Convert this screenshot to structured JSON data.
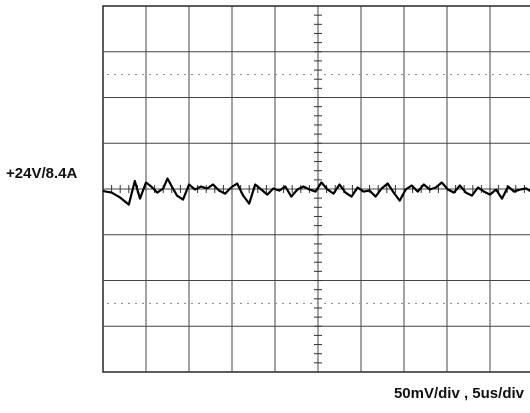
{
  "chart_data": {
    "type": "line",
    "title": "",
    "channel_label": "+24V/8.4A",
    "scale_label": "50mV/div , 5us/div",
    "xlabel": "",
    "ylabel": "",
    "grid": true,
    "divisions": {
      "x": 10,
      "y": 8
    },
    "xlim": [
      0,
      50
    ],
    "ylim": [
      -200,
      200
    ],
    "x_unit": "us",
    "y_unit": "mV",
    "series": [
      {
        "name": "",
        "x": [
          0,
          1,
          2,
          3,
          3.7,
          4.3,
          5,
          5.6,
          6.3,
          7,
          7.5,
          8,
          8.6,
          9.3,
          10,
          10.7,
          11.4,
          12.1,
          12.8,
          13.5,
          14.2,
          14.9,
          15.6,
          16.3,
          17,
          17.7,
          18.4,
          19.1,
          19.8,
          20.5,
          21.2,
          21.9,
          22.6,
          23.3,
          24,
          24.7,
          25.4,
          26.1,
          26.8,
          27.5,
          28.2,
          28.9,
          29.6,
          30.3,
          31,
          31.7,
          32.4,
          33.1,
          33.8,
          34.5,
          35.2,
          35.9,
          36.6,
          37.3,
          38,
          38.7,
          39.4,
          40.1,
          40.8,
          41.5,
          42.2,
          42.9,
          43.6,
          44.3,
          45,
          45.7,
          46.4,
          47.1,
          47.8,
          48.5,
          49.2,
          50
        ],
        "y": [
          5,
          2,
          -8,
          -22,
          25,
          -10,
          22,
          14,
          2,
          10,
          30,
          14,
          -4,
          -12,
          18,
          8,
          14,
          10,
          18,
          6,
          0,
          12,
          20,
          -4,
          -20,
          18,
          8,
          -2,
          10,
          6,
          14,
          -6,
          8,
          14,
          8,
          4,
          22,
          8,
          0,
          18,
          2,
          -6,
          12,
          4,
          6,
          -6,
          10,
          20,
          2,
          -14,
          8,
          16,
          4,
          18,
          8,
          12,
          22,
          8,
          2,
          16,
          2,
          -4,
          12,
          4,
          -2,
          8,
          -10,
          14,
          4,
          8,
          10,
          2
        ]
      }
    ]
  }
}
